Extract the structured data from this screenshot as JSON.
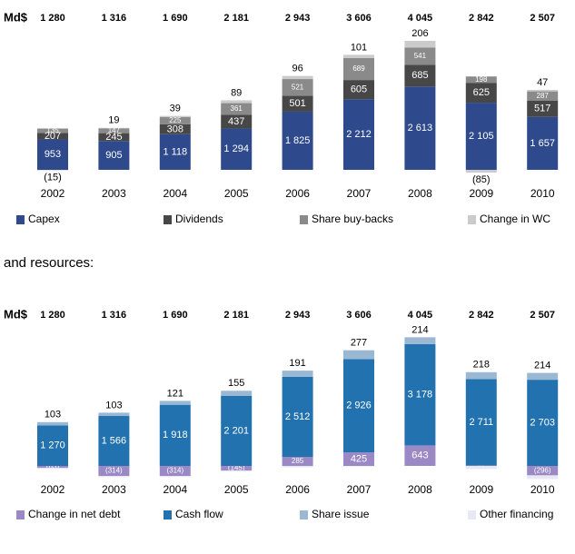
{
  "section_heading": "and resources:",
  "chart_data": [
    {
      "type": "bar",
      "stacked": true,
      "unit": "Md$",
      "categories": [
        "2002",
        "2003",
        "2004",
        "2005",
        "2006",
        "2007",
        "2008",
        "2009",
        "2010"
      ],
      "totals": [
        1280,
        1316,
        1690,
        2181,
        2943,
        3606,
        4045,
        2842,
        2507
      ],
      "total_labels": [
        "1 280",
        "1 316",
        "1 690",
        "2 181",
        "2 943",
        "3 606",
        "4 045",
        "2 842",
        "2 507"
      ],
      "series": [
        {
          "name": "Capex",
          "color": "#2e4a8c",
          "values": [
            953,
            905,
            1118,
            1294,
            1825,
            2212,
            2613,
            2105,
            1657
          ],
          "value_labels": [
            "953",
            "905",
            "1 118",
            "1 294",
            "1 825",
            "2 212",
            "2 613",
            "2 105",
            "1 657"
          ]
        },
        {
          "name": "Dividends",
          "color": "#474747",
          "values": [
            207,
            245,
            308,
            437,
            501,
            605,
            685,
            625,
            517
          ]
        },
        {
          "name": "Share buy-backs",
          "color": "#8a8a8a",
          "values": [
            135,
            147,
            225,
            361,
            521,
            689,
            541,
            198,
            287
          ]
        },
        {
          "name": "Change in WC",
          "color": "#cbcbcb",
          "values": [
            -15,
            19,
            39,
            89,
            96,
            101,
            206,
            -85,
            47
          ],
          "value_labels": [
            "(15)",
            "19",
            "39",
            "89",
            "96",
            "101",
            "206",
            "(85)",
            "47"
          ]
        }
      ]
    },
    {
      "type": "bar",
      "stacked": true,
      "unit": "Md$",
      "categories": [
        "2002",
        "2003",
        "2004",
        "2005",
        "2006",
        "2007",
        "2008",
        "2009",
        "2010"
      ],
      "totals": [
        1280,
        1316,
        1690,
        2181,
        2943,
        3606,
        4045,
        2842,
        2507
      ],
      "total_labels": [
        "1 280",
        "1 316",
        "1 690",
        "2 181",
        "2 943",
        "3 606",
        "4 045",
        "2 842",
        "2 507"
      ],
      "series": [
        {
          "name": "Change in net debt",
          "color": "#9a89c4",
          "values": [
            -63,
            -314,
            -314,
            -145,
            285,
            425,
            643,
            11,
            -296
          ],
          "value_labels": [
            "(63)",
            "(314)",
            "(314)",
            "(145)",
            "285",
            "425",
            "643",
            "11",
            "(296)"
          ]
        },
        {
          "name": "Cash flow",
          "color": "#2272b0",
          "values": [
            1270,
            1566,
            1918,
            2201,
            2512,
            2926,
            3178,
            2711,
            2703
          ],
          "value_labels": [
            "1 270",
            "1 566",
            "1 918",
            "2 201",
            "2 512",
            "2 926",
            "3 178",
            "2 711",
            "2 703"
          ]
        },
        {
          "name": "Share issue",
          "color": "#9ab8d4",
          "values": [
            103,
            103,
            121,
            155,
            191,
            277,
            214,
            218,
            214
          ]
        },
        {
          "name": "Other financing",
          "color": "#e8e8f4",
          "values": [
            -30,
            -39,
            -35,
            -30,
            -45,
            -22,
            10,
            -98,
            -114
          ]
        }
      ]
    }
  ]
}
